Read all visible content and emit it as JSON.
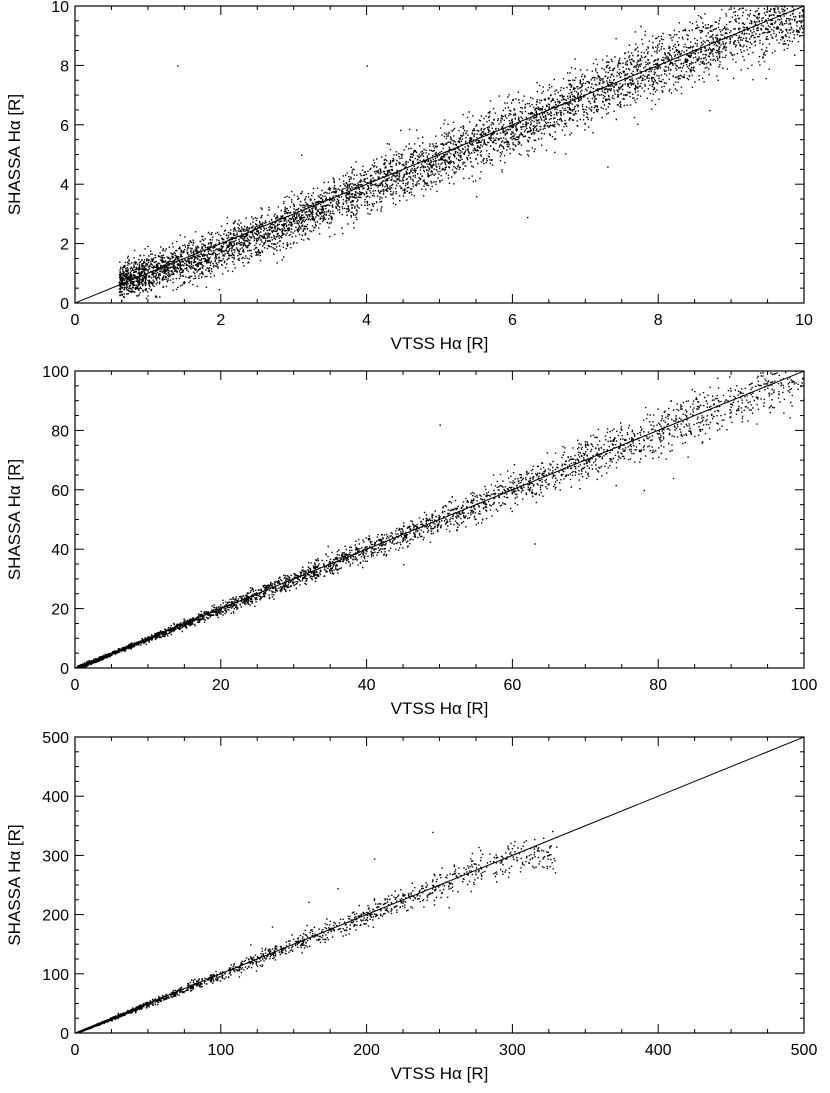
{
  "chart_data": [
    {
      "type": "scatter",
      "xlabel": "VTSS Hα [R]",
      "ylabel": "SHASSA Hα [R]",
      "xlim": [
        0,
        10
      ],
      "ylim": [
        0,
        10
      ],
      "xticks": [
        0,
        2,
        4,
        6,
        8,
        10
      ],
      "yticks": [
        0,
        2,
        4,
        6,
        8,
        10
      ],
      "x_range_points": [
        0.6,
        10
      ],
      "reference_line": {
        "from": [
          0,
          0
        ],
        "to": [
          10,
          10
        ]
      },
      "trend": [
        [
          0.6,
          0.8
        ],
        [
          1,
          1.0
        ],
        [
          2,
          1.8
        ],
        [
          3,
          2.8
        ],
        [
          4,
          3.9
        ],
        [
          5,
          4.9
        ],
        [
          6,
          5.9
        ],
        [
          7,
          7.0
        ],
        [
          8,
          8.0
        ],
        [
          9,
          9.0
        ],
        [
          10,
          9.9
        ]
      ],
      "scatter_spread": 0.35,
      "n_points": 5500,
      "outliers": [
        [
          1.4,
          8.0
        ],
        [
          4.0,
          8.0
        ],
        [
          9.5,
          9.6
        ],
        [
          7.3,
          4.6
        ],
        [
          3.1,
          5.0
        ],
        [
          6.2,
          2.9
        ],
        [
          5.5,
          3.6
        ],
        [
          8.7,
          6.5
        ]
      ],
      "color": "#000000"
    },
    {
      "type": "scatter",
      "xlabel": "VTSS Hα [R]",
      "ylabel": "SHASSA Hα [R]",
      "xlim": [
        0,
        100
      ],
      "ylim": [
        0,
        100
      ],
      "xticks": [
        0,
        20,
        40,
        60,
        80,
        100
      ],
      "yticks": [
        0,
        20,
        40,
        60,
        80,
        100
      ],
      "x_range_points": [
        0.3,
        100
      ],
      "reference_line": {
        "from": [
          0,
          0
        ],
        "to": [
          100,
          100
        ]
      },
      "trend": [
        [
          0,
          0
        ],
        [
          20,
          20
        ],
        [
          40,
          40
        ],
        [
          60,
          60
        ],
        [
          80,
          80
        ],
        [
          100,
          100
        ]
      ],
      "scatter_spread": 0.05,
      "n_points": 3500,
      "outliers": [
        [
          50,
          82
        ],
        [
          78,
          60
        ],
        [
          82,
          64
        ],
        [
          97,
          93
        ],
        [
          45,
          35
        ],
        [
          63,
          42
        ]
      ],
      "color": "#000000"
    },
    {
      "type": "scatter",
      "xlabel": "VTSS Hα [R]",
      "ylabel": "SHASSA Hα [R]",
      "xlim": [
        0,
        500
      ],
      "ylim": [
        0,
        500
      ],
      "xticks": [
        0,
        100,
        200,
        300,
        400,
        500
      ],
      "yticks": [
        0,
        100,
        200,
        300,
        400,
        500
      ],
      "x_range_points": [
        2,
        330
      ],
      "reference_line": {
        "from": [
          0,
          0
        ],
        "to": [
          500,
          500
        ]
      },
      "trend": [
        [
          0,
          0
        ],
        [
          100,
          100
        ],
        [
          200,
          200
        ],
        [
          300,
          300
        ]
      ],
      "scatter_spread": 0.05,
      "n_points": 1800,
      "outliers": [
        [
          205,
          295
        ],
        [
          245,
          340
        ],
        [
          160,
          222
        ],
        [
          135,
          180
        ],
        [
          180,
          245
        ],
        [
          295,
          305
        ],
        [
          330,
          315
        ],
        [
          120,
          150
        ]
      ],
      "color": "#000000"
    }
  ]
}
